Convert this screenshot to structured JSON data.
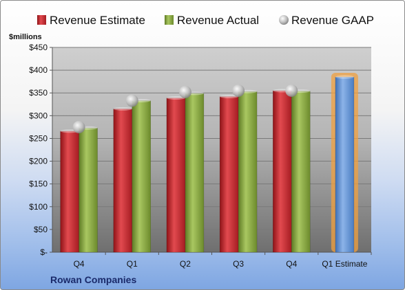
{
  "chart_data": {
    "type": "bar",
    "ylabel": "$millions",
    "ylim": [
      0,
      450
    ],
    "yticks": [
      "$-",
      "$50",
      "$100",
      "$150",
      "$200",
      "$250",
      "$300",
      "$350",
      "$400",
      "$450"
    ],
    "categories": [
      "Q4",
      "Q1",
      "Q2",
      "Q3",
      "Q4",
      "Q1 Estimate"
    ],
    "series": [
      {
        "name": "Revenue Estimate",
        "type": "bar",
        "color": "#c0272d",
        "values": [
          266,
          315,
          339,
          342,
          355,
          null
        ]
      },
      {
        "name": "Revenue Actual",
        "type": "bar",
        "color": "#7f9e3a",
        "values": [
          273,
          333,
          349,
          353,
          354,
          null
        ]
      },
      {
        "name": "Revenue GAAP",
        "type": "marker",
        "color": "#b8b8b8",
        "values": [
          275,
          333,
          352,
          355,
          355,
          null
        ]
      },
      {
        "name": "Q1 Estimate",
        "type": "bar",
        "color": "#5b8fd4",
        "values": [
          null,
          null,
          null,
          null,
          null,
          385
        ]
      }
    ],
    "legend_position": "top",
    "grid": true,
    "company": "Rowan Companies"
  }
}
